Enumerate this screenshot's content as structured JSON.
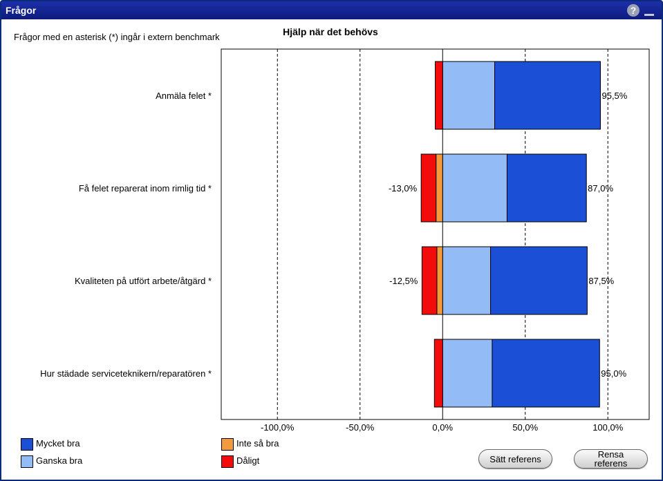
{
  "window": {
    "title": "Frågor"
  },
  "note": "Frågor med en asterisk (*) ingår i extern benchmark",
  "buttons": {
    "set_reference": "Sätt referens",
    "clear_reference": "Rensa referens"
  },
  "colors": {
    "mycket_bra": "#1a4fd6",
    "ganska_bra": "#93bcf7",
    "inte_sa_bra": "#f59a3c",
    "daligt": "#f20c0c"
  },
  "chart_data": {
    "type": "bar",
    "orientation": "horizontal",
    "stacked": "diverging",
    "title": "Hjälp när det behövs",
    "categories": [
      "Anmäla felet *",
      "Få felet reparerat inom rimlig tid *",
      "Kvaliteten på utfört arbete/åtgärd *",
      "Hur städade serviceteknikern/reparatören *"
    ],
    "series": [
      {
        "name": "Mycket bra",
        "values": [
          64,
          48,
          58.5,
          65
        ]
      },
      {
        "name": "Ganska bra",
        "values": [
          31.5,
          39,
          29,
          30
        ]
      },
      {
        "name": "Inte så bra",
        "values": [
          0,
          -4,
          -3.5,
          0
        ]
      },
      {
        "name": "Dåligt",
        "values": [
          -4.5,
          -9,
          -9,
          -5
        ]
      }
    ],
    "negative_labels": [
      "",
      "-13,0%",
      "-12,5%",
      ""
    ],
    "positive_labels": [
      "95,5%",
      "87,0%",
      "87,5%",
      "95,0%"
    ],
    "xlim": [
      -134,
      125
    ],
    "xticks": [
      -100,
      -50,
      0,
      50,
      100
    ],
    "xtick_labels": [
      "-100,0%",
      "-50,0%",
      "0,0%",
      "50,0%",
      "100,0%"
    ],
    "grid": "vertical-dashed",
    "legend_position": "bottom-left"
  }
}
